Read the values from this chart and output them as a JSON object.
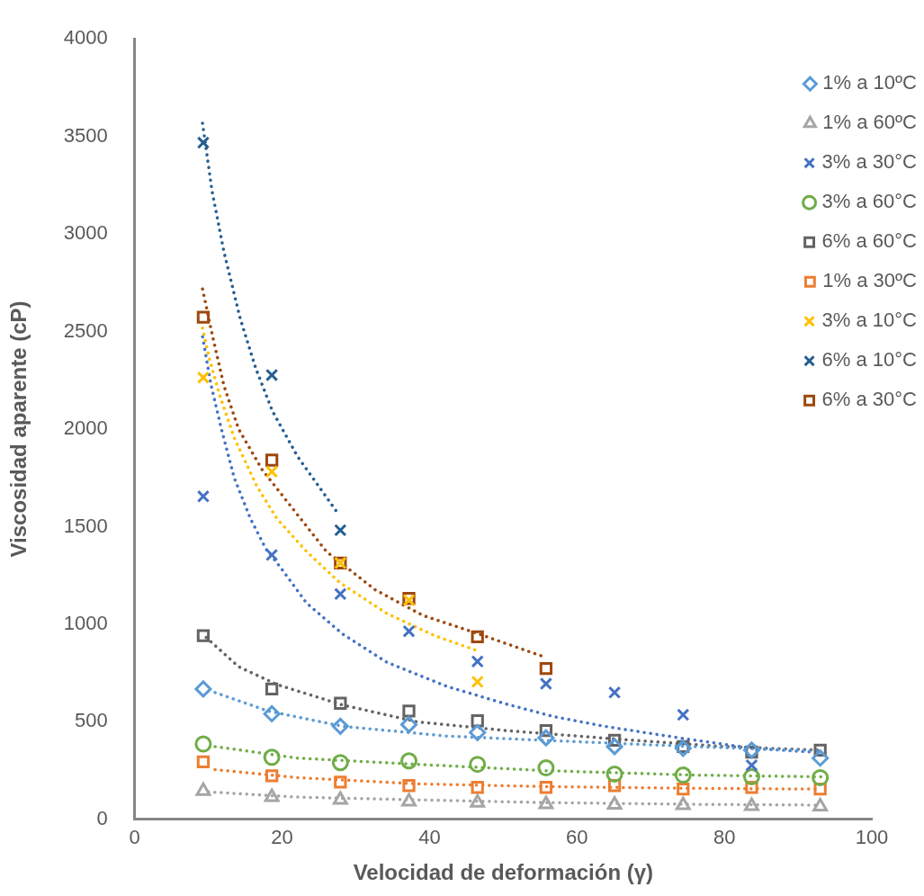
{
  "chart_data": {
    "type": "scatter",
    "xlabel": "Velocidad de deformación (γ)",
    "ylabel": "Viscosidad aparente (cP)",
    "x": [
      9.3,
      18.6,
      27.9,
      37.2,
      46.5,
      55.8,
      65.1,
      74.4,
      83.7,
      93.0
    ],
    "xlim": [
      0,
      100
    ],
    "xticks": [
      0,
      20,
      40,
      60,
      80,
      100
    ],
    "ylim": [
      0,
      4000
    ],
    "yticks": [
      0,
      500,
      1000,
      1500,
      2000,
      2500,
      3000,
      3500,
      4000
    ],
    "grid": false,
    "legend": "top right",
    "series": [
      {
        "name": "1% a 10ºC",
        "color": "#5b9bd5",
        "marker": "diamond",
        "values": [
          668,
          541,
          477,
          486,
          445,
          418,
          373,
          364,
          355,
          314
        ]
      },
      {
        "name": "1% a 60ºC",
        "color": "#a5a5a5",
        "marker": "triangle",
        "values": [
          145,
          114,
          100,
          91,
          86,
          77,
          75,
          73,
          68,
          66
        ]
      },
      {
        "name": "3% a 30°C",
        "color": "#4472c4",
        "marker": "cross",
        "values": [
          1655,
          1355,
          1155,
          964,
          809,
          695,
          650,
          536,
          277,
          null
        ]
      },
      {
        "name": "3% a 60°C",
        "color": "#70ad47",
        "marker": "circle",
        "values": [
          386,
          318,
          291,
          300,
          282,
          264,
          232,
          227,
          218,
          214
        ]
      },
      {
        "name": "6% a 60°C",
        "color": "#636363",
        "marker": "square",
        "values": [
          941,
          668,
          595,
          555,
          505,
          455,
          405,
          373,
          345,
          355
        ]
      },
      {
        "name": "1% a 30ºC",
        "color": "#ed7d31",
        "marker": "square",
        "values": [
          295,
          223,
          191,
          173,
          164,
          164,
          173,
          155,
          164,
          155
        ]
      },
      {
        "name": "3% a 10°C",
        "color": "#ffc000",
        "marker": "cross",
        "values": [
          2264,
          1782,
          1314,
          1123,
          705,
          null,
          null,
          null,
          null,
          null
        ]
      },
      {
        "name": "6% a 10°C",
        "color": "#255e91",
        "marker": "cross",
        "values": [
          3468,
          2277,
          1482,
          null,
          null,
          null,
          null,
          null,
          null,
          null
        ]
      },
      {
        "name": "6% a 30°C",
        "color": "#9e480e",
        "marker": "square",
        "values": [
          2573,
          1841,
          1314,
          1132,
          936,
          773,
          null,
          null,
          null,
          null
        ]
      },
      {
        "type": "line",
        "color": "#5b9bd5",
        "line_style": "dotted",
        "marker": "none",
        "x": [
          10.9,
          18.1,
          28.2,
          42.3,
          55.6,
          75.8,
          93.1
        ],
        "values": [
          650,
          555,
          477,
          427,
          405,
          373,
          350
        ]
      },
      {
        "type": "line",
        "color": "#a5a5a5",
        "line_style": "dotted",
        "marker": "none",
        "x": [
          10,
          22.1,
          38.3,
          55.6,
          75.8,
          93.1
        ],
        "values": [
          141,
          114,
          100,
          86,
          77,
          73
        ]
      },
      {
        "type": "line",
        "color": "#4472c4",
        "line_style": "dotted",
        "marker": "none",
        "x": [
          9.2,
          10.3,
          11.7,
          13.5,
          15.7,
          17.8,
          19.7,
          23.3,
          28.2,
          34.2,
          42.3,
          50.4,
          56.8,
          63.7,
          73.8,
          83.8,
          91.9
        ],
        "values": [
          2473,
          2236,
          2009,
          1750,
          1541,
          1386,
          1295,
          1109,
          950,
          805,
          682,
          591,
          527,
          477,
          418,
          364,
          345
        ]
      },
      {
        "type": "line",
        "color": "#70ad47",
        "line_style": "dotted",
        "marker": "none",
        "x": [
          10.9,
          22.1,
          38.3,
          55.6,
          75.8,
          93.1
        ],
        "values": [
          373,
          314,
          282,
          250,
          227,
          218
        ]
      },
      {
        "type": "line",
        "color": "#636363",
        "line_style": "dotted",
        "marker": "none",
        "x": [
          9.7,
          14.1,
          19.3,
          28.2,
          38.3,
          50.4,
          67.7,
          79.8,
          93.1
        ],
        "values": [
          932,
          782,
          691,
          586,
          500,
          455,
          405,
          373,
          355
        ]
      },
      {
        "type": "line",
        "color": "#ed7d31",
        "line_style": "dotted",
        "marker": "none",
        "x": [
          10.9,
          22.1,
          38.3,
          55.6,
          75.8,
          93.1
        ],
        "values": [
          255,
          214,
          182,
          168,
          159,
          155
        ]
      },
      {
        "type": "line",
        "color": "#ffc000",
        "line_style": "dotted",
        "marker": "none",
        "x": [
          9.2,
          10.1,
          11.5,
          13.5,
          16.6,
          19.3,
          23.3,
          27.8,
          34.2,
          40.7,
          46.2
        ],
        "values": [
          2518,
          2364,
          2177,
          1955,
          1705,
          1541,
          1373,
          1214,
          1055,
          941,
          868
        ]
      },
      {
        "type": "line",
        "color": "#255e91",
        "line_style": "dotted",
        "marker": "none",
        "x": [
          9.2,
          10.5,
          12.1,
          14.3,
          16.4,
          18.7,
          22.1,
          27.4
        ],
        "values": [
          3568,
          3218,
          2909,
          2568,
          2314,
          2091,
          1859,
          1577
        ]
      },
      {
        "type": "line",
        "color": "#9e480e",
        "line_style": "dotted",
        "marker": "none",
        "x": [
          9.2,
          10.5,
          12.1,
          14.1,
          17.3,
          26,
          32.6,
          39.1,
          46.3,
          55.6
        ],
        "values": [
          2718,
          2486,
          2223,
          2000,
          1791,
          1373,
          1177,
          1045,
          955,
          832
        ]
      }
    ]
  }
}
